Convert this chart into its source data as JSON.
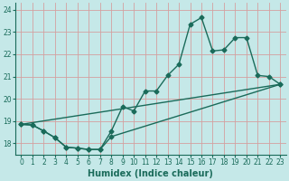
{
  "xlabel": "Humidex (Indice chaleur)",
  "bg_color": "#c5e8e8",
  "grid_color": "#d4a0a0",
  "line_color": "#1a6b5a",
  "xlim": [
    -0.5,
    23.5
  ],
  "ylim": [
    17.5,
    24.3
  ],
  "yticks": [
    18,
    19,
    20,
    21,
    22,
    23,
    24
  ],
  "xticks": [
    0,
    1,
    2,
    3,
    4,
    5,
    6,
    7,
    8,
    9,
    10,
    11,
    12,
    13,
    14,
    15,
    16,
    17,
    18,
    19,
    20,
    21,
    22,
    23
  ],
  "line1_x": [
    0,
    1,
    2,
    3,
    4,
    5,
    6,
    7,
    8,
    9,
    10,
    11,
    12,
    13,
    14,
    15,
    16,
    17,
    18,
    19,
    20,
    21,
    22,
    23
  ],
  "line1_y": [
    18.85,
    18.82,
    18.55,
    18.25,
    17.82,
    17.78,
    17.72,
    17.72,
    18.55,
    19.65,
    19.45,
    20.35,
    20.35,
    21.05,
    21.55,
    23.35,
    23.65,
    22.15,
    22.2,
    22.75,
    22.75,
    21.05,
    21.0,
    20.65
  ],
  "line2_x": [
    0,
    1,
    2,
    3,
    4,
    5,
    6,
    7,
    8,
    23
  ],
  "line2_y": [
    18.85,
    18.82,
    18.55,
    18.25,
    17.82,
    17.78,
    17.72,
    17.72,
    18.3,
    20.65
  ],
  "line3_x": [
    0,
    23
  ],
  "line3_y": [
    18.85,
    20.65
  ],
  "markersize": 2.5,
  "linewidth": 1.0,
  "xlabel_fontsize": 7,
  "tick_fontsize": 5.5
}
